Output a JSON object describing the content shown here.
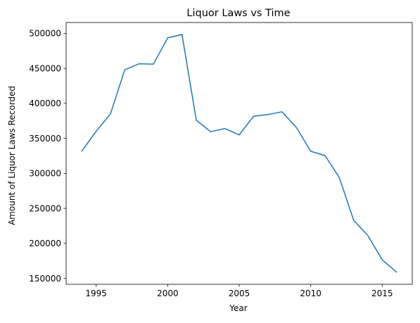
{
  "chart_data": {
    "type": "line",
    "title": "Liquor Laws vs Time",
    "xlabel": "Year",
    "ylabel": "Amount of Liquor Laws Recorded",
    "x": [
      1994,
      1995,
      1996,
      1997,
      1998,
      1999,
      2000,
      2001,
      2002,
      2003,
      2004,
      2005,
      2006,
      2007,
      2008,
      2009,
      2010,
      2011,
      2012,
      2013,
      2014,
      2015,
      2016
    ],
    "series": [
      {
        "color": "#1f77b4",
        "values": [
          332000,
          360000,
          385000,
          448000,
          456500,
          456000,
          493500,
          498500,
          376000,
          359500,
          364000,
          355000,
          381500,
          384000,
          388000,
          365500,
          331500,
          325500,
          294000,
          233000,
          211000,
          176500,
          159000
        ]
      }
    ],
    "xticks": [
      1995,
      2000,
      2005,
      2010,
      2015
    ],
    "xtick_labels": [
      "1995",
      "2000",
      "2005",
      "2010",
      "2015"
    ],
    "yticks": [
      150000,
      200000,
      250000,
      300000,
      350000,
      400000,
      450000,
      500000
    ],
    "ytick_labels": [
      "150000",
      "200000",
      "250000",
      "300000",
      "350000",
      "400000",
      "450000",
      "500000"
    ],
    "xlim": [
      1992.9,
      2017.1
    ],
    "ylim": [
      141500,
      515500
    ],
    "grid": false,
    "legend": "none"
  }
}
